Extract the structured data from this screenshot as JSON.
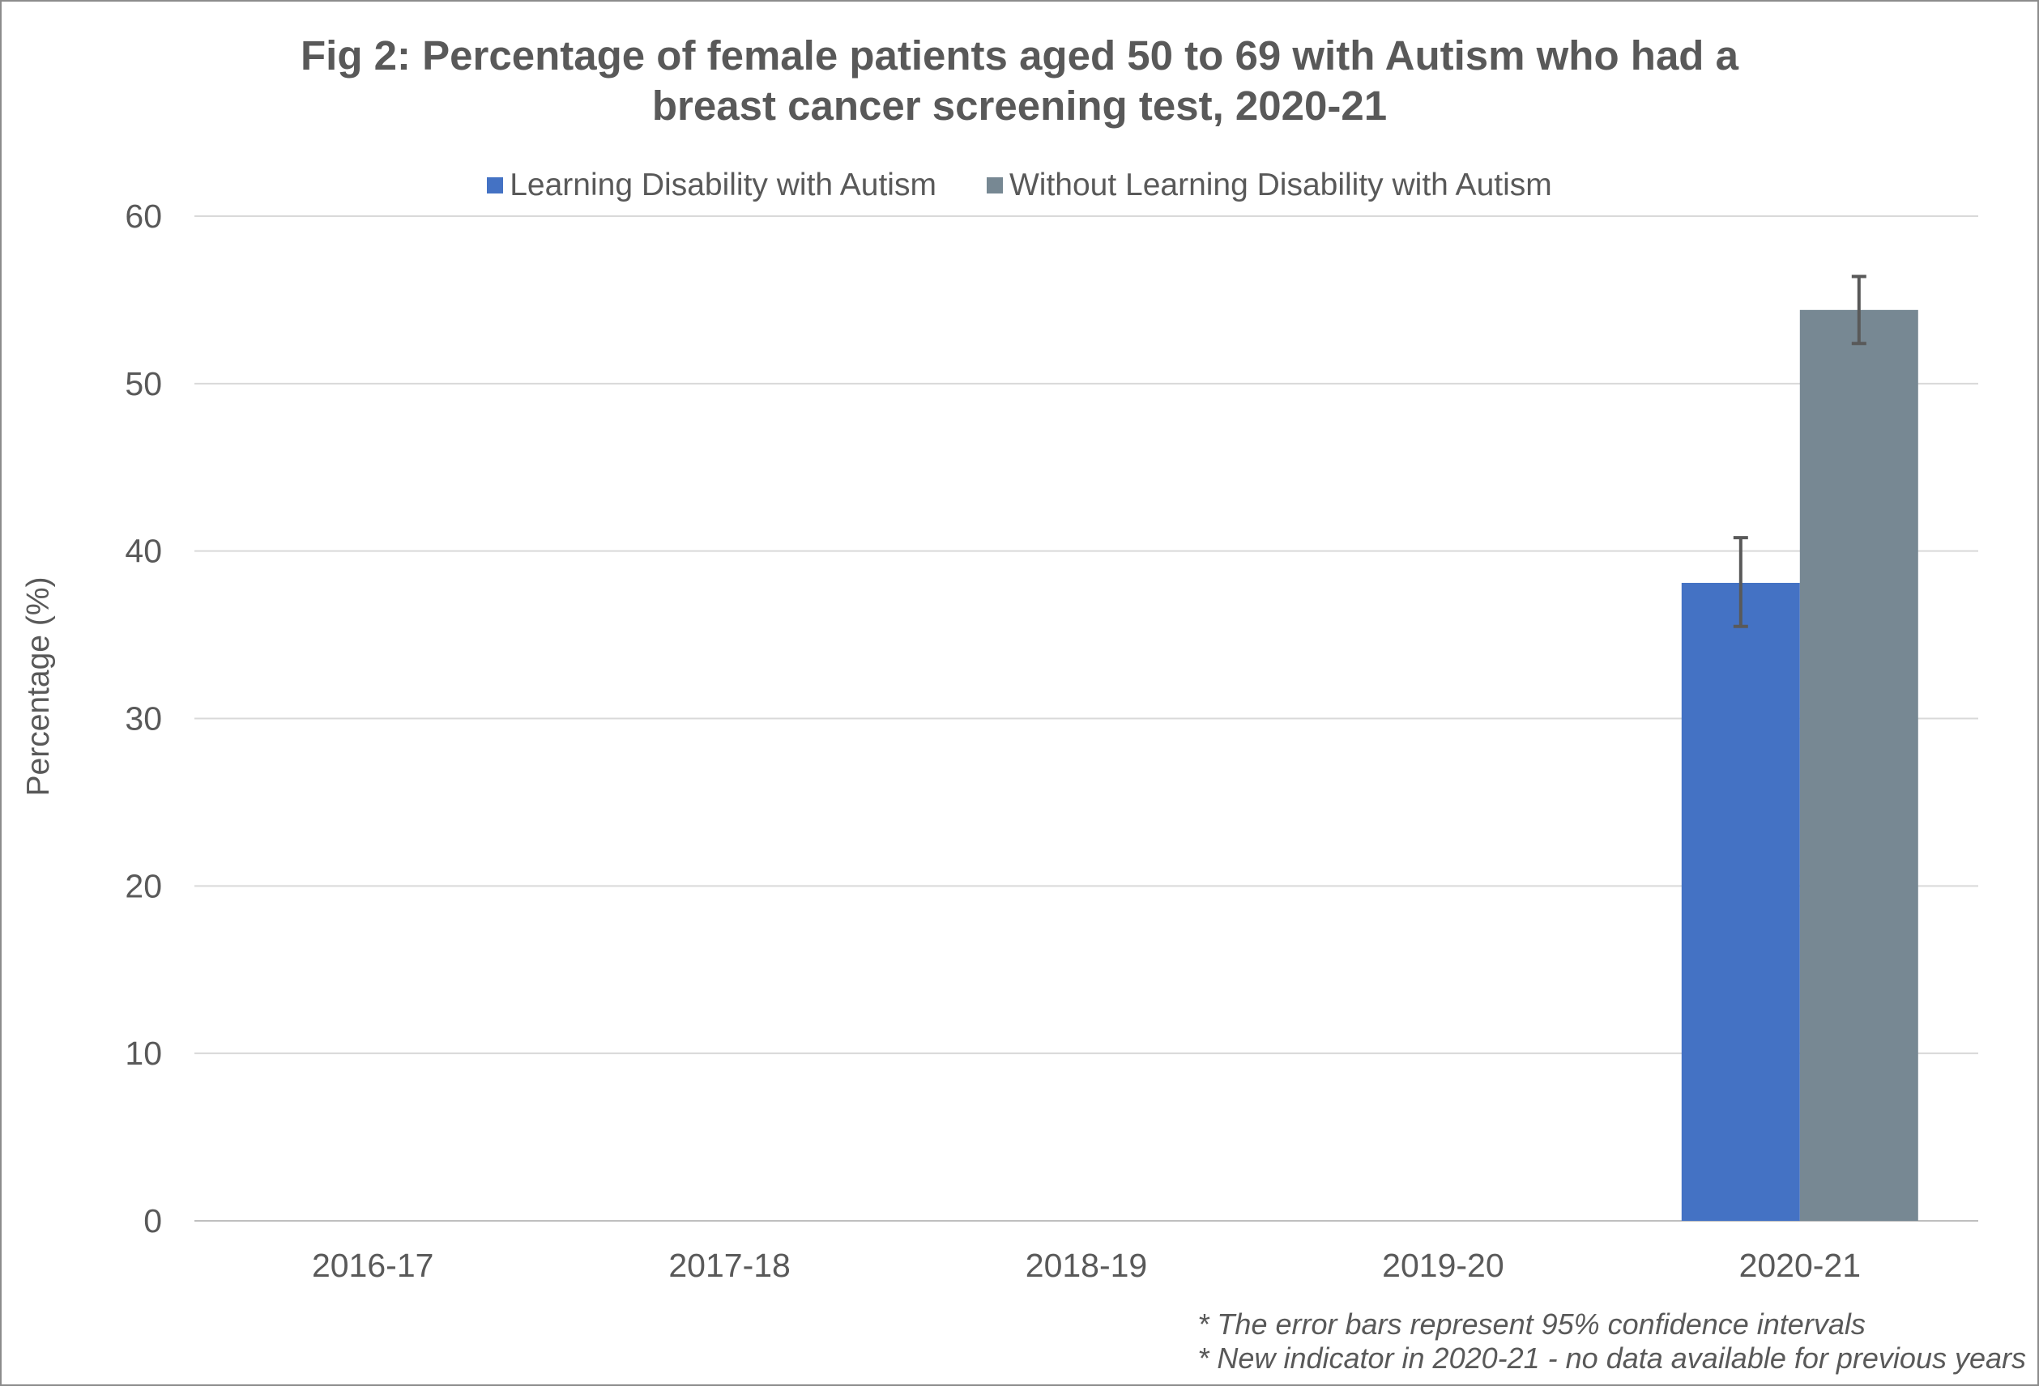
{
  "chart_data": {
    "type": "bar",
    "title_lines": [
      "Fig 2: Percentage of female patients aged 50 to 69 with Autism who had a",
      "breast cancer screening test, 2020-21"
    ],
    "ylabel": "Percentage (%)",
    "xlabel": "",
    "categories": [
      "2016-17",
      "2017-18",
      "2018-19",
      "2019-20",
      "2020-21"
    ],
    "ylim": [
      0,
      60
    ],
    "yticks": [
      0,
      10,
      20,
      30,
      40,
      50,
      60
    ],
    "grid": true,
    "legend_position": "top",
    "series": [
      {
        "name": "Learning Disability with Autism",
        "color": "#4472c4",
        "values": [
          null,
          null,
          null,
          null,
          38.1
        ],
        "ci_low": [
          null,
          null,
          null,
          null,
          35.5
        ],
        "ci_high": [
          null,
          null,
          null,
          null,
          40.8
        ]
      },
      {
        "name": "Without Learning Disability with Autism",
        "color": "#778893",
        "values": [
          null,
          null,
          null,
          null,
          54.4
        ],
        "ci_low": [
          null,
          null,
          null,
          null,
          52.4
        ],
        "ci_high": [
          null,
          null,
          null,
          null,
          56.4
        ]
      }
    ],
    "footnotes": [
      "* The error bars represent 95% confidence intervals",
      "* New indicator in 2020-21 - no data available for previous years"
    ]
  }
}
